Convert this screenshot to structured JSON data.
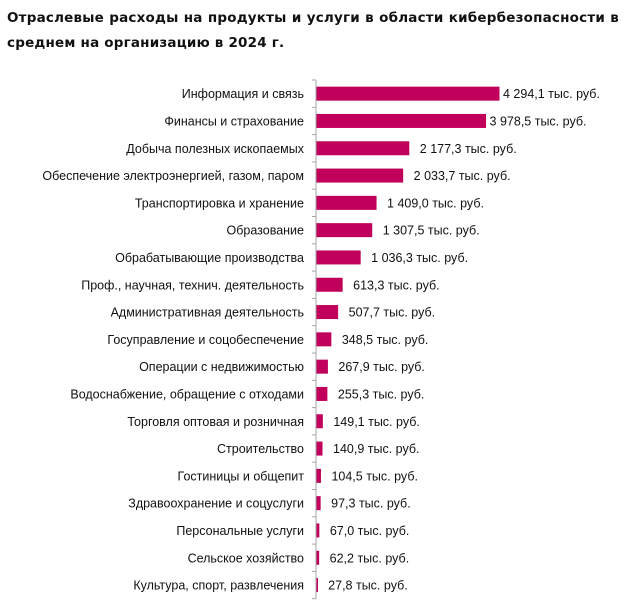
{
  "chart_data": {
    "type": "bar",
    "orientation": "horizontal",
    "title": "Отраслевые расходы на продукты и услуги в области кибербезопасности в среднем на организацию в 2024 г.",
    "categories": [
      "Информация и связь",
      "Финансы и страхование",
      "Добыча полезных ископаемых",
      "Обеспечение электроэнергией, газом, паром",
      "Транспортировка и хранение",
      "Образование",
      "Обрабатывающие производства",
      "Проф., научная, технич. деятельность",
      "Административная деятельность",
      "Госуправление и соцобеспечение",
      "Операции с недвижимостью",
      "Водоснабжение, обращение с отходами",
      "Торговля оптовая и розничная",
      "Строительство",
      "Гостиницы и общепит",
      "Здравоохранение и соцуслуги",
      "Персональные услуги",
      "Сельское хозяйство",
      "Культура, спорт, развлечения"
    ],
    "values": [
      4294.1,
      3978.5,
      2177.3,
      2033.7,
      1409.0,
      1307.5,
      1036.3,
      613.3,
      507.7,
      348.5,
      267.9,
      255.3,
      149.1,
      140.9,
      104.5,
      97.3,
      67.0,
      62.2,
      27.8
    ],
    "data_labels": [
      "4 294,1 тыс. руб.",
      "3 978,5 тыс. руб.",
      "2 177,3 тыс. руб.",
      "2 033,7 тыс. руб.",
      "1 409,0 тыс. руб.",
      "1 307,5 тыс. руб.",
      "1 036,3 тыс. руб.",
      "613,3 тыс. руб.",
      "507,7 тыс. руб.",
      "348,5 тыс. руб.",
      "267,9 тыс. руб.",
      "255,3 тыс. руб.",
      "149,1 тыс. руб.",
      "140,9 тыс. руб.",
      "104,5 тыс. руб.",
      "97,3 тыс. руб.",
      "67,0 тыс. руб.",
      "62,2 тыс. руб.",
      "27,8 тыс. руб."
    ],
    "unit": "тыс. руб.",
    "xlim": [
      0,
      4294.1
    ],
    "grid": false,
    "legend": "none",
    "colors": {
      "bar": "#C0005A",
      "axis": "#A6A6A6"
    }
  }
}
